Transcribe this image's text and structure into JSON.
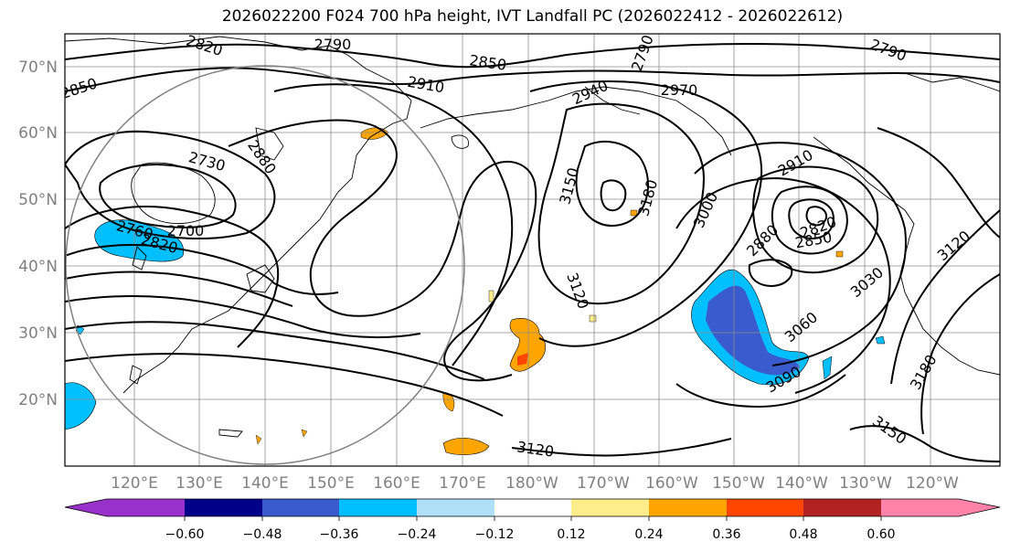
{
  "title": "2026022200 F024 700 hPa height, IVT Landfall PC (2026022412 - 2026022612)",
  "lat_labels": [
    "70°N",
    "60°N",
    "50°N",
    "40°N",
    "30°N",
    "20°N"
  ],
  "lon_labels": [
    "120°E",
    "130°E",
    "140°E",
    "150°E",
    "160°E",
    "170°E",
    "180°W",
    "170°W",
    "160°W",
    "150°W",
    "140°W",
    "130°W",
    "120°W"
  ],
  "colorbar": {
    "ticks": [
      "−0.60",
      "−0.48",
      "−0.36",
      "−0.24",
      "−0.12",
      "0.12",
      "0.24",
      "0.36",
      "0.48",
      "0.60"
    ],
    "colors": [
      "#9932cc",
      "#00008b",
      "#3a5bcd",
      "#00bfff",
      "#b0e0f8",
      "#ffffff",
      "#ffec8b",
      "#ffa500",
      "#ff4500",
      "#b22222",
      "#ff82ab"
    ]
  },
  "contour_labels": [
    "2820",
    "2790",
    "2850",
    "2910",
    "2940",
    "2970",
    "2790",
    "2790",
    "2850",
    "2730",
    "2880",
    "2700",
    "2760",
    "2820",
    "3150",
    "3180",
    "3000",
    "2910",
    "2880",
    "2820",
    "2850",
    "3120",
    "3030",
    "3120",
    "3060",
    "3090",
    "3180",
    "3150",
    "3120"
  ]
}
